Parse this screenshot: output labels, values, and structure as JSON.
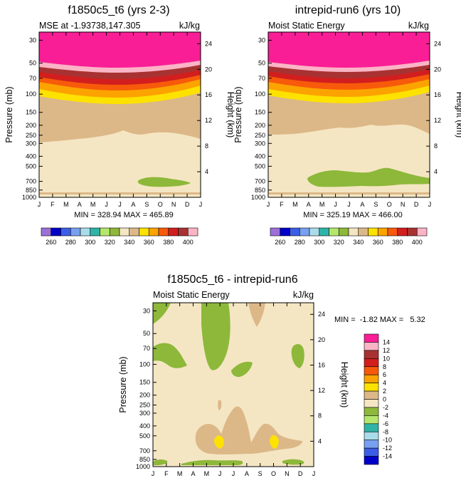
{
  "chart_data": [
    {
      "type": "contour",
      "title": "f1850c5_t6 (yrs 2-3)",
      "subtitle_left": "MSE at -1.93738,147.305",
      "subtitle_right": "kJ/kg",
      "ylabel_left": "Pressure (mb)",
      "ylabel_right": "Height (km)",
      "x_ticks": [
        "J",
        "F",
        "M",
        "A",
        "M",
        "J",
        "J",
        "A",
        "S",
        "O",
        "N",
        "D",
        "J"
      ],
      "pressure_ticks": [
        "30",
        "50",
        "70",
        "100",
        "150",
        "200",
        "250",
        "300",
        "400",
        "500",
        "700",
        "850",
        "1000"
      ],
      "height_ticks": [
        "24",
        "20",
        "16",
        "12",
        "8",
        "4"
      ],
      "stats": "MIN = 328.94 MAX = 465.89",
      "min": 328.94,
      "max": 465.89,
      "levels": [
        260,
        270,
        280,
        290,
        300,
        310,
        320,
        330,
        340,
        350,
        360,
        370,
        380,
        390,
        400
      ],
      "colorbar_labels": [
        "260",
        "280",
        "300",
        "320",
        "340",
        "360",
        "380",
        "400"
      ]
    },
    {
      "type": "contour",
      "title": "intrepid-run6 (yrs 10)",
      "subtitle_left": "Moist Static Energy",
      "subtitle_right": "kJ/kg",
      "ylabel_left": "Pressure (mb)",
      "ylabel_right": "Height (km)",
      "x_ticks": [
        "J",
        "F",
        "M",
        "A",
        "M",
        "J",
        "J",
        "A",
        "S",
        "O",
        "N",
        "D",
        "J"
      ],
      "pressure_ticks": [
        "30",
        "50",
        "70",
        "100",
        "150",
        "200",
        "250",
        "300",
        "400",
        "500",
        "700",
        "850",
        "1000"
      ],
      "height_ticks": [
        "24",
        "20",
        "16",
        "12",
        "8",
        "4"
      ],
      "stats": "MIN = 325.19 MAX = 466.00",
      "min": 325.19,
      "max": 466.0,
      "levels": [
        260,
        270,
        280,
        290,
        300,
        310,
        320,
        330,
        340,
        350,
        360,
        370,
        380,
        390,
        400
      ],
      "colorbar_labels": [
        "260",
        "280",
        "300",
        "320",
        "340",
        "360",
        "380",
        "400"
      ]
    },
    {
      "type": "contour",
      "title": "f1850c5_t6 - intrepid-run6",
      "subtitle_left": "Moist Static Energy",
      "subtitle_right": "kJ/kg",
      "ylabel_left": "Pressure (mb)",
      "ylabel_right": "Height (km)",
      "x_ticks": [
        "J",
        "F",
        "M",
        "A",
        "M",
        "J",
        "J",
        "A",
        "S",
        "O",
        "N",
        "D",
        "J"
      ],
      "pressure_ticks": [
        "30",
        "50",
        "70",
        "100",
        "150",
        "200",
        "250",
        "300",
        "400",
        "500",
        "700",
        "850",
        "1000"
      ],
      "height_ticks": [
        "24",
        "20",
        "16",
        "12",
        "8",
        "4"
      ],
      "stats": "MIN =  -1.82 MAX =   5.32",
      "min": -1.82,
      "max": 5.32,
      "levels": [
        -14,
        -12,
        -10,
        -8,
        -6,
        -4,
        -2,
        0,
        2,
        4,
        6,
        8,
        10,
        12,
        14
      ],
      "colorbar_labels": [
        "14",
        "12",
        "10",
        "8",
        "6",
        "4",
        "2",
        "0",
        "-2",
        "-4",
        "-6",
        "-8",
        "-10",
        "-12",
        "-14"
      ]
    }
  ],
  "colors": {
    "c01": "#9b70d9",
    "c02": "#0000c8",
    "c03": "#3c5ee6",
    "c04": "#78a0f0",
    "c05": "#a8dcea",
    "c06": "#2fb3a6",
    "c07": "#b4e66e",
    "c08": "#8db83a",
    "c09": "#f5e6c3",
    "c10": "#dcb888",
    "c11": "#fde200",
    "c12": "#fca300",
    "c13": "#f75a0a",
    "c14": "#d21e1e",
    "c15": "#a83232",
    "c16": "#fbb4c5",
    "c17": "#f91e96"
  }
}
